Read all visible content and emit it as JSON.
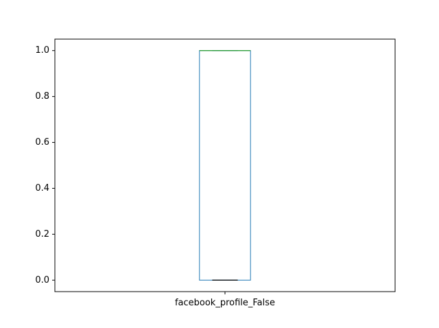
{
  "chart_data": {
    "type": "box",
    "title": "",
    "xlabel": "",
    "ylabel": "",
    "ylim": [
      -0.05,
      1.05
    ],
    "yticks": [
      "0.0",
      "0.2",
      "0.4",
      "0.6",
      "0.8",
      "1.0"
    ],
    "yticks_values": [
      0.0,
      0.2,
      0.4,
      0.6,
      0.8,
      1.0
    ],
    "categories": [
      "facebook_profile_False"
    ],
    "boxes": [
      {
        "label": "facebook_profile_False",
        "q1": 0.0,
        "median": 1.0,
        "q3": 1.0,
        "whisker_low": 0.0,
        "whisker_high": 1.0
      }
    ],
    "colors": {
      "box": "#1f77b4",
      "median": "#2ca02c",
      "whisker_cap": "#000000",
      "axes": "#000000"
    },
    "grid": false
  }
}
